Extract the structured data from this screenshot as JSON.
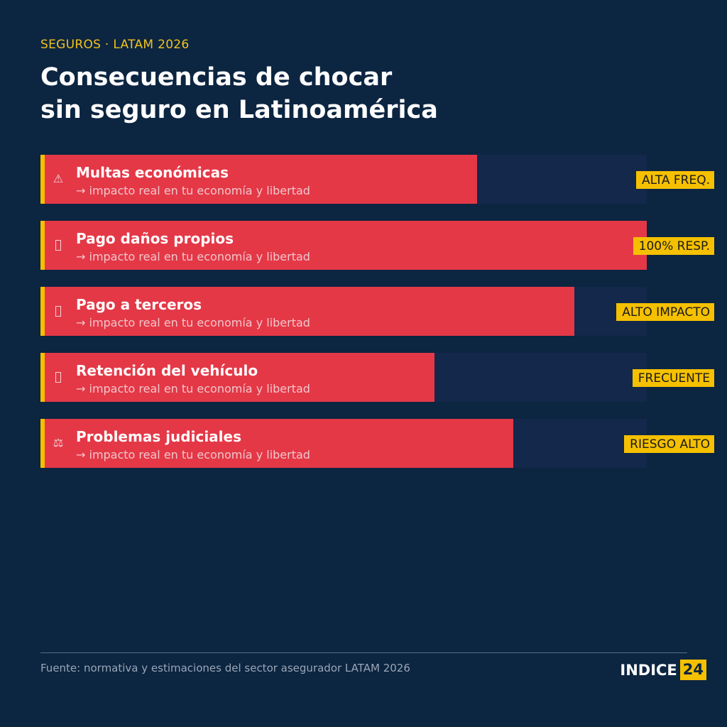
{
  "header": {
    "kicker": "SEGUROS · LATAM 2026",
    "title_line1": "Consecuencias de chocar",
    "title_line2": "sin seguro en Latinoamérica"
  },
  "colors": {
    "background": "#0c2541",
    "bar": "#e43847",
    "accent": "#f5c000",
    "track": "#13284a"
  },
  "chart_data": {
    "type": "bar",
    "orientation": "horizontal",
    "title": "Consecuencias de chocar sin seguro en Latinoamérica",
    "xlim": [
      0,
      100
    ],
    "categories": [
      "Multas económicas",
      "Pago daños propios",
      "Pago a terceros",
      "Retención del vehículo",
      "Problemas judiciales"
    ],
    "values": [
      72,
      100,
      88,
      65,
      78
    ],
    "subtitles": [
      "→  impacto real en tu economía y libertad",
      "→  impacto real en tu economía y libertad",
      "→  impacto real en tu economía y libertad",
      "→  impacto real en tu economía y libertad",
      "→  impacto real en tu economía y libertad"
    ],
    "badges": [
      "ALTA FREQ.",
      "100% RESP.",
      "ALTO IMPACTO",
      "FRECUENTE",
      "RIESGO ALTO"
    ],
    "icons": [
      "warning-icon",
      "missing-glyph-icon",
      "missing-glyph-icon",
      "missing-glyph-icon",
      "scales-icon"
    ]
  },
  "footer": {
    "source": "Fuente: normativa y estimaciones del sector asegurador LATAM 2026",
    "brand_text": "INDICE",
    "brand_num": "24"
  }
}
